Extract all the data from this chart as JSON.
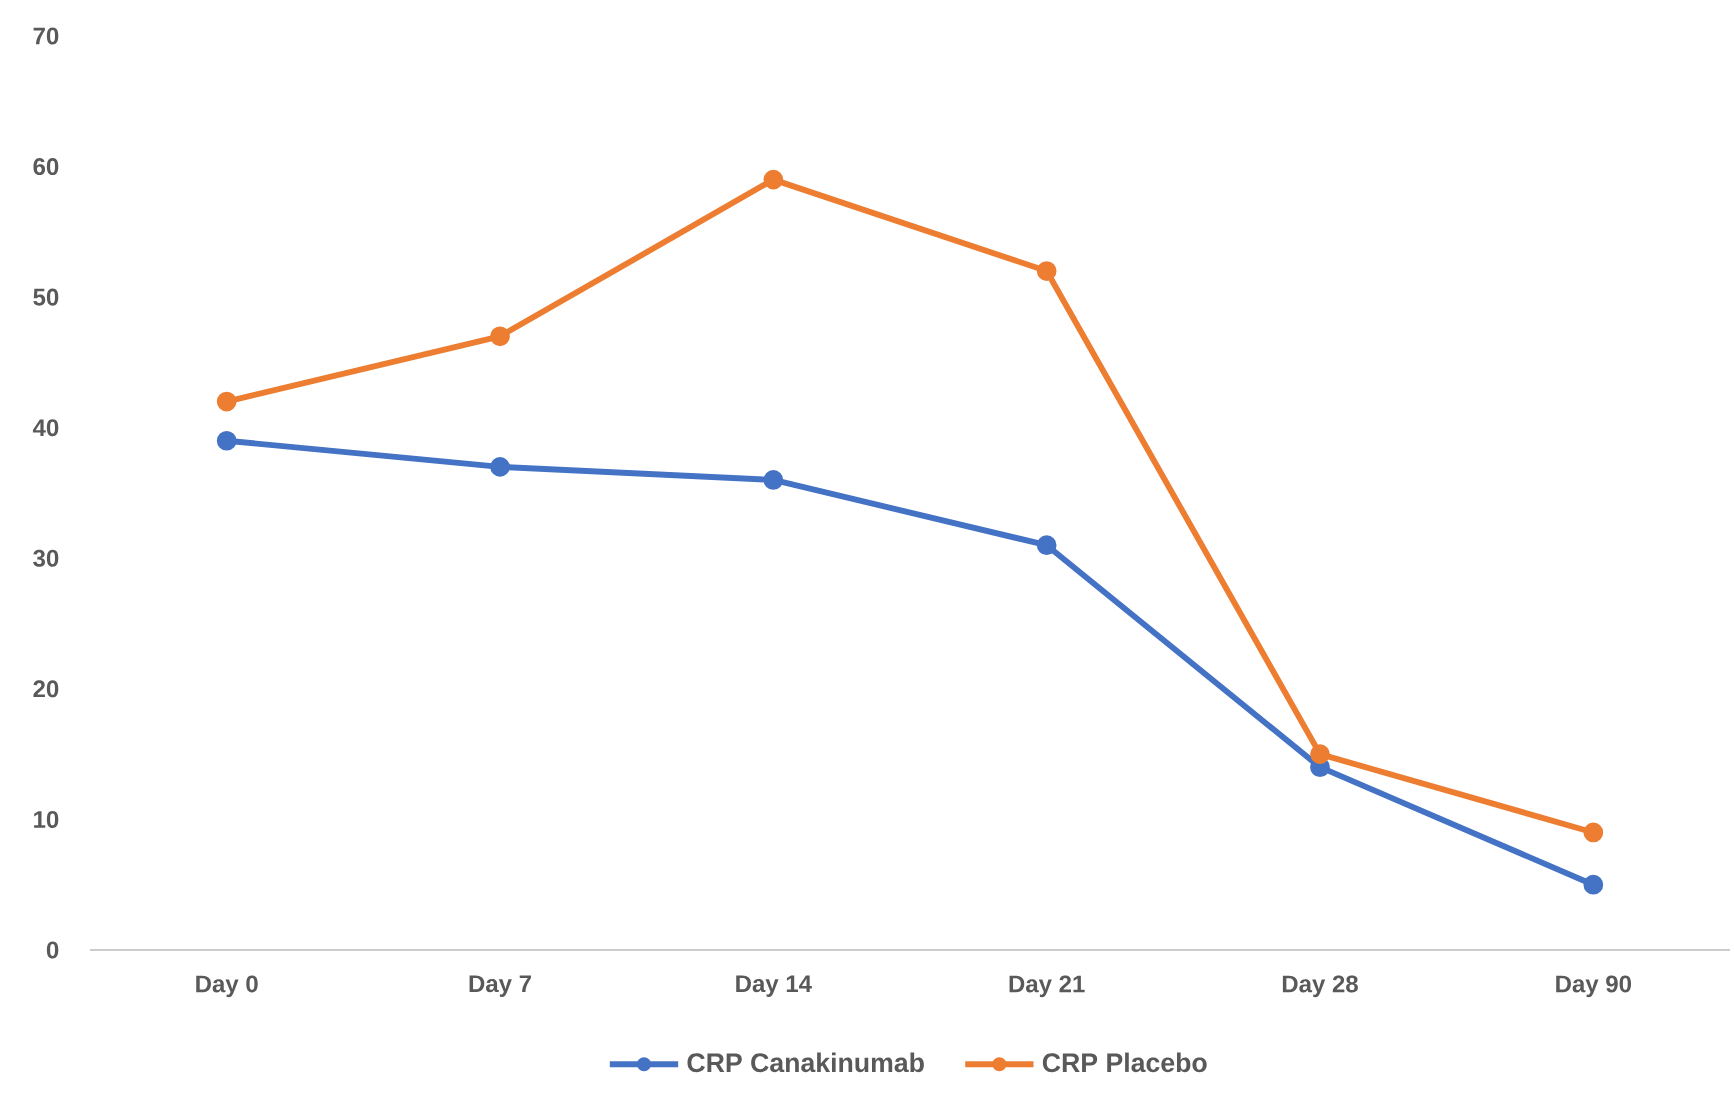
{
  "chart_data": {
    "type": "line",
    "categories": [
      "Day 0",
      "Day 7",
      "Day 14",
      "Day 21",
      "Day 28",
      "Day 90"
    ],
    "series": [
      {
        "name": "CRP Canakinumab",
        "color": "#4472c4",
        "values": [
          39,
          37,
          36,
          31,
          14,
          5
        ]
      },
      {
        "name": "CRP Placebo",
        "color": "#ed7d31",
        "values": [
          42,
          47,
          59,
          52,
          15,
          9
        ]
      }
    ],
    "ylim": [
      0,
      70
    ],
    "yticks": [
      0,
      10,
      20,
      30,
      40,
      50,
      60,
      70
    ],
    "grid": false,
    "legend": "bottom",
    "marker": "circle",
    "line_style": "solid"
  }
}
